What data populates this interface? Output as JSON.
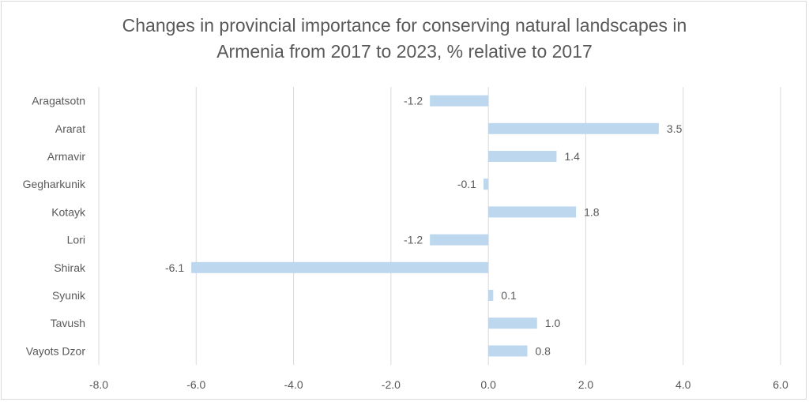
{
  "chart_data": {
    "type": "bar",
    "orientation": "horizontal",
    "title": "Changes in provincial importance for conserving natural landscapes in Armenia from 2017 to 2023, % relative to 2017",
    "title_lines": [
      "Changes in provincial importance for conserving natural landscapes in",
      "Armenia from 2017 to 2023, % relative to 2017"
    ],
    "categories": [
      "Aragatsotn",
      "Ararat",
      "Armavir",
      "Gegharkunik",
      "Kotayk",
      "Lori",
      "Shirak",
      "Syunik",
      "Tavush",
      "Vayots Dzor"
    ],
    "values": [
      -1.2,
      3.5,
      1.4,
      -0.1,
      1.8,
      -1.2,
      -6.1,
      0.1,
      1.0,
      0.8
    ],
    "data_labels": [
      "-1.2",
      "3.5",
      "1.4",
      "-0.1",
      "1.8",
      "-1.2",
      "-6.1",
      "0.1",
      "1.0",
      "0.8"
    ],
    "x_ticks": [
      -8,
      -6,
      -4,
      -2,
      0,
      2,
      4,
      6
    ],
    "x_tick_labels": [
      "-8.0",
      "-6.0",
      "-4.0",
      "-2.0",
      "0.0",
      "2.0",
      "4.0",
      "6.0"
    ],
    "xlim": [
      -8,
      6
    ],
    "xlabel": "",
    "ylabel": "",
    "grid": true,
    "legend": "none",
    "colors": {
      "bar": "#bdd7ee",
      "grid": "#d9d9d9",
      "text": "#595959"
    }
  }
}
